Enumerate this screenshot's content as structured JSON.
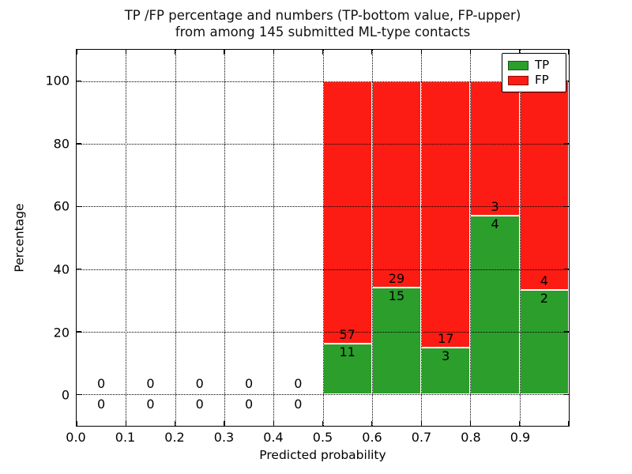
{
  "chart_data": {
    "type": "bar",
    "stacked": true,
    "title_line1": "TP /FP percentage and numbers (TP-bottom value, FP-upper)",
    "title_line2": "from among 145 submitted ML-type contacts",
    "xlabel": "Predicted probability",
    "ylabel": "Percentage",
    "xlim": [
      0.0,
      1.0
    ],
    "ylim": [
      -10,
      110
    ],
    "x_ticks": [
      0.0,
      0.1,
      0.2,
      0.3,
      0.4,
      0.5,
      0.6,
      0.7,
      0.8,
      0.9
    ],
    "y_ticks": [
      0,
      20,
      40,
      60,
      80,
      100
    ],
    "grid": "dotted, drawn above bars",
    "legend_position": "upper right",
    "total_contacts": 145,
    "colors": {
      "tp": "#2b9e2b",
      "fp": "#fc1c13"
    },
    "legend": [
      {
        "label": "TP",
        "color": "#2b9e2b"
      },
      {
        "label": "FP",
        "color": "#fc1c13"
      }
    ],
    "note": "Bars are TP/FP counts normalized to 100% per bin; TP count shown below segment boundary, FP count above",
    "bins": [
      {
        "range": [
          0.0,
          0.1
        ],
        "tp": 0,
        "fp": 0
      },
      {
        "range": [
          0.1,
          0.2
        ],
        "tp": 0,
        "fp": 0
      },
      {
        "range": [
          0.2,
          0.3
        ],
        "tp": 0,
        "fp": 0
      },
      {
        "range": [
          0.3,
          0.4
        ],
        "tp": 0,
        "fp": 0
      },
      {
        "range": [
          0.4,
          0.5
        ],
        "tp": 0,
        "fp": 0
      },
      {
        "range": [
          0.5,
          0.6
        ],
        "tp": 11,
        "fp": 57
      },
      {
        "range": [
          0.6,
          0.7
        ],
        "tp": 15,
        "fp": 29
      },
      {
        "range": [
          0.7,
          0.8
        ],
        "tp": 3,
        "fp": 17
      },
      {
        "range": [
          0.8,
          0.9
        ],
        "tp": 4,
        "fp": 3
      },
      {
        "range": [
          0.9,
          1.0
        ],
        "tp": 2,
        "fp": 4
      }
    ]
  }
}
